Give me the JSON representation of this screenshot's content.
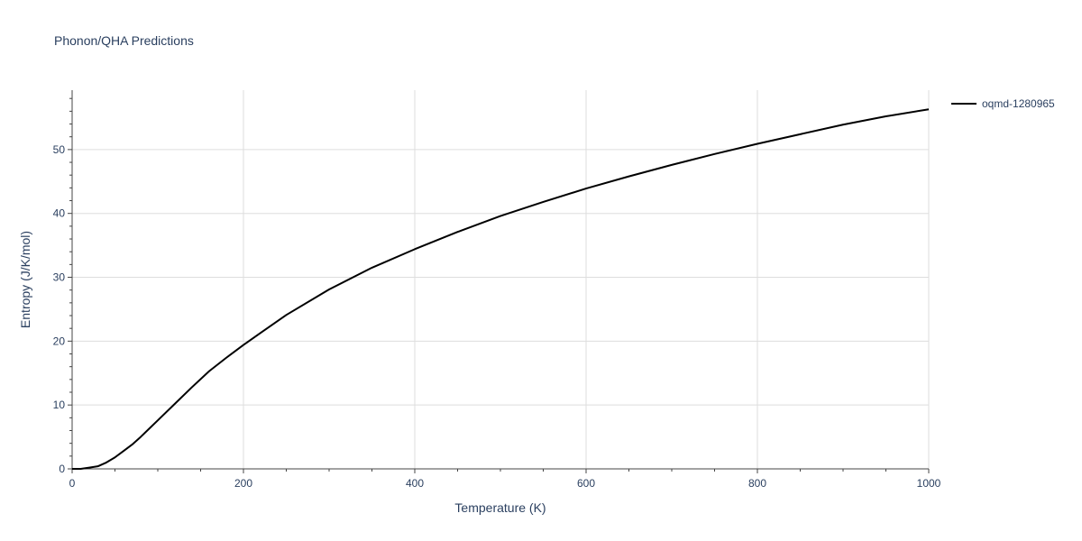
{
  "chart_data": {
    "type": "line",
    "title": "Phonon/QHA Predictions",
    "xlabel": "Temperature (K)",
    "ylabel": "Entropy (J/K/mol)",
    "xlim": [
      0,
      1000
    ],
    "ylim": [
      0,
      59.3
    ],
    "x_ticks": [
      0,
      200,
      400,
      600,
      800,
      1000
    ],
    "y_ticks": [
      0,
      10,
      20,
      30,
      40,
      50
    ],
    "grid": true,
    "legend_position": "top-right",
    "series": [
      {
        "name": "oqmd-1280965",
        "color": "#000000",
        "x": [
          0,
          10,
          20,
          30,
          40,
          50,
          60,
          70,
          80,
          90,
          100,
          120,
          140,
          160,
          180,
          200,
          220,
          250,
          300,
          350,
          400,
          450,
          500,
          550,
          600,
          650,
          700,
          750,
          800,
          850,
          900,
          950,
          1000
        ],
        "y": [
          0,
          0.0,
          0.2,
          0.4,
          1.0,
          1.8,
          2.8,
          3.8,
          5.0,
          6.3,
          7.6,
          10.2,
          12.8,
          15.3,
          17.4,
          19.4,
          21.3,
          24.1,
          28.1,
          31.5,
          34.4,
          37.1,
          39.6,
          41.8,
          43.9,
          45.8,
          47.6,
          49.3,
          50.9,
          52.4,
          53.9,
          55.2,
          56.3
        ]
      }
    ]
  }
}
